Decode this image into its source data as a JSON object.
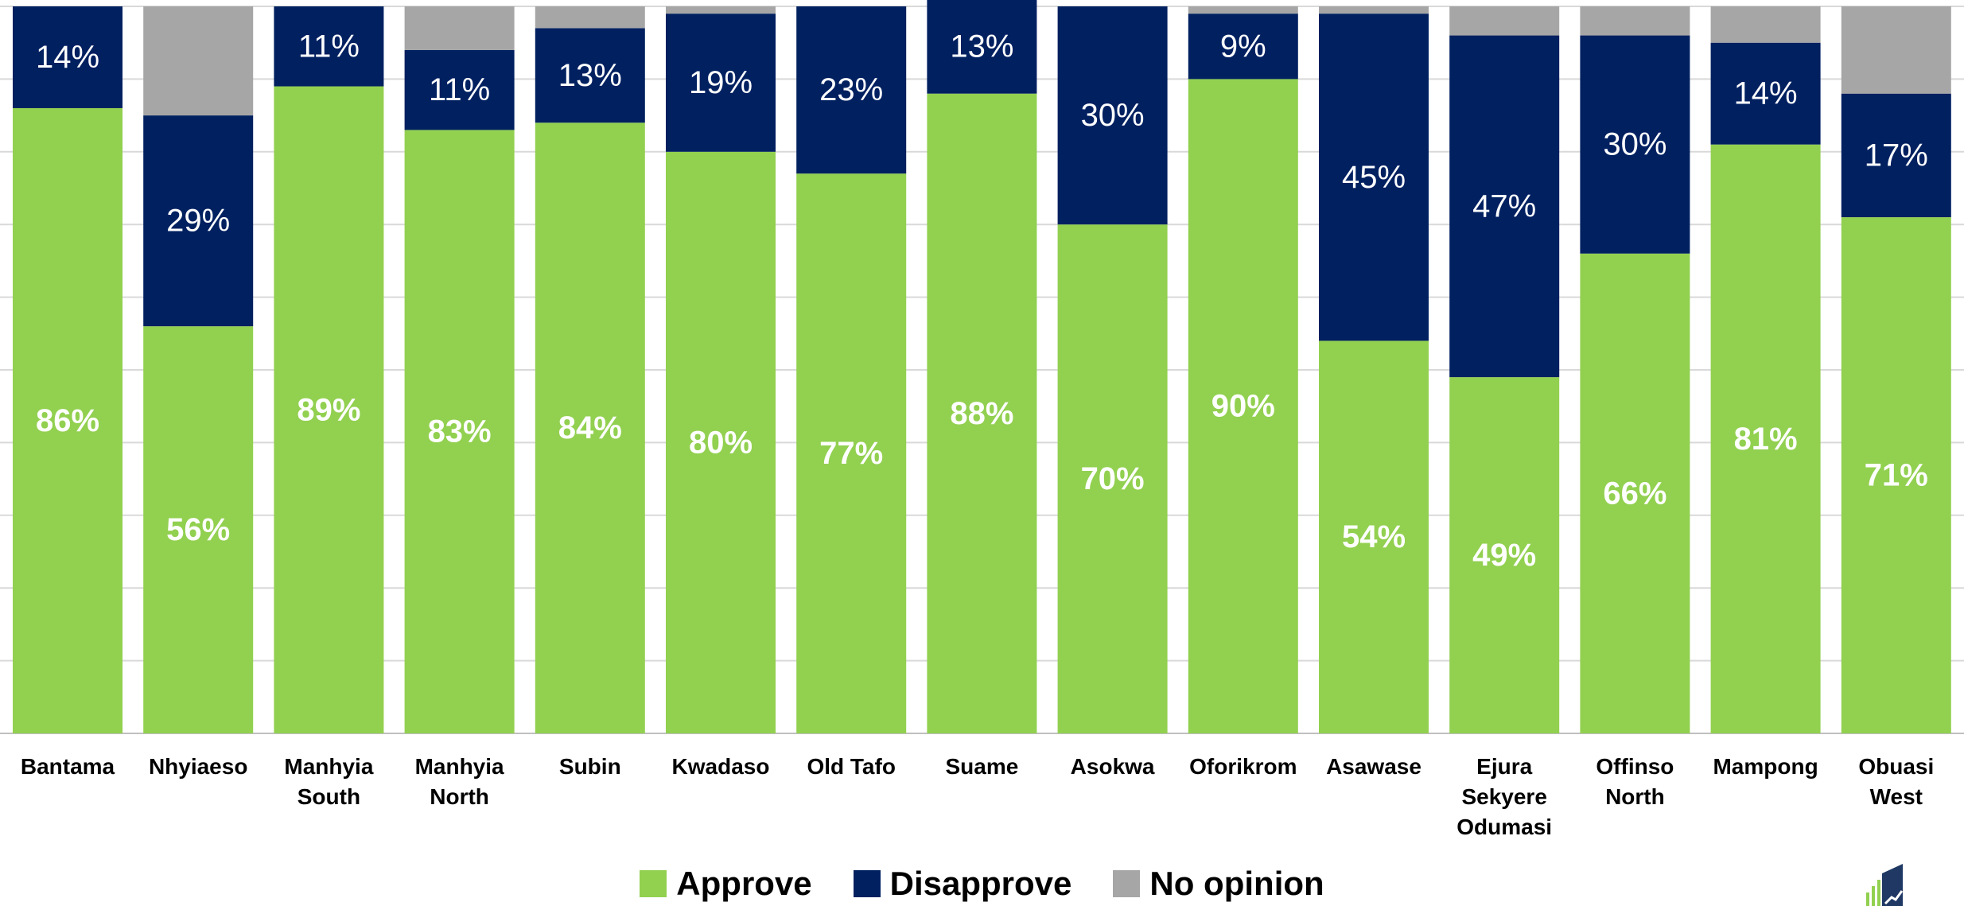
{
  "chart_data": {
    "type": "bar",
    "stacked": true,
    "categories": [
      [
        "Bantama"
      ],
      [
        "Nhyiaeso"
      ],
      [
        "Manhyia",
        "South"
      ],
      [
        "Manhyia",
        "North"
      ],
      [
        "Subin"
      ],
      [
        "Kwadaso"
      ],
      [
        "Old Tafo"
      ],
      [
        "Suame"
      ],
      [
        "Asokwa"
      ],
      [
        "Oforikrom"
      ],
      [
        "Asawase"
      ],
      [
        "Ejura",
        "Sekyere",
        "Odumasi"
      ],
      [
        "Offinso",
        "North"
      ],
      [
        "Mampong"
      ],
      [
        "Obuasi",
        "West"
      ]
    ],
    "series": [
      {
        "name": "Approve",
        "color": "#92d050",
        "values": [
          86,
          56,
          89,
          83,
          84,
          80,
          77,
          88,
          70,
          90,
          54,
          49,
          66,
          81,
          71
        ],
        "labels": [
          "86%",
          "56%",
          "89%",
          "83%",
          "84%",
          "80%",
          "77%",
          "88%",
          "70%",
          "90%",
          "54%",
          "49%",
          "66%",
          "81%",
          "71%"
        ]
      },
      {
        "name": "Disapprove",
        "color": "#002060",
        "values": [
          14,
          29,
          11,
          11,
          13,
          19,
          23,
          13,
          30,
          9,
          45,
          47,
          30,
          14,
          17
        ],
        "labels": [
          "14%",
          "29%",
          "11%",
          "11%",
          "13%",
          "19%",
          "23%",
          "13%",
          "30%",
          "9%",
          "45%",
          "47%",
          "30%",
          "14%",
          "17%"
        ]
      },
      {
        "name": "No opinion",
        "color": "#a6a6a6",
        "values": [
          0,
          15,
          0,
          6,
          3,
          1,
          0,
          0,
          0,
          1,
          1,
          4,
          4,
          5,
          12
        ],
        "labels": []
      }
    ],
    "ylim": [
      0,
      100
    ],
    "grid": true,
    "legend_position": "bottom",
    "title": "",
    "xlabel": "",
    "ylabel": ""
  },
  "legend": {
    "items": [
      {
        "label": "Approve",
        "color": "#92d050"
      },
      {
        "label": "Disapprove",
        "color": "#002060"
      },
      {
        "label": "No opinion",
        "color": "#a6a6a6"
      }
    ]
  },
  "logo": {
    "icon": "growth-chart-logo-icon"
  }
}
